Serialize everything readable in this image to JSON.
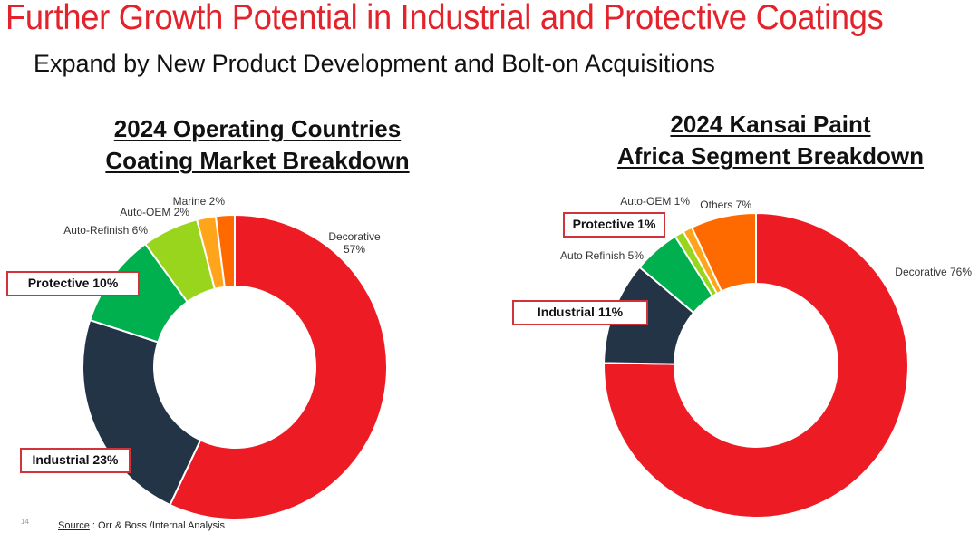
{
  "slide": {
    "title": "Further Growth Potential in Industrial and Protective Coatings",
    "subtitle": "Expand by New Product Development and Bolt-on Acquisitions",
    "page_number": "14",
    "source_label": "Source",
    "source_text": " : Orr & Boss /Internal Analysis"
  },
  "colors": {
    "title_red": "#e3222b",
    "callout_border": "#d0343a"
  },
  "chart_data": [
    {
      "type": "pie",
      "style": "donut",
      "title_line1": "2024 Operating Countries",
      "title_line2": "Coating Market Breakdown",
      "start": "12 o'clock",
      "direction": "clockwise",
      "unit": "%",
      "slices": [
        {
          "name": "Decorative",
          "value": 57,
          "label": "Decorative",
          "label2": "57%",
          "color": "#ed1c24",
          "callout": false
        },
        {
          "name": "Industrial",
          "value": 23,
          "label": "Industrial 23%",
          "color": "#243447",
          "callout": true
        },
        {
          "name": "Protective",
          "value": 10,
          "label": "Protective 10%",
          "color": "#00b04f",
          "callout": true
        },
        {
          "name": "Auto-Refinish",
          "value": 6,
          "label": "Auto-Refinish 6%",
          "color": "#99d51c",
          "callout": false
        },
        {
          "name": "Auto-OEM",
          "value": 2,
          "label": "Auto-OEM 2%",
          "color": "#ffa41b",
          "callout": false
        },
        {
          "name": "Marine",
          "value": 2,
          "label": "Marine 2%",
          "color": "#ff6a00",
          "callout": false
        }
      ]
    },
    {
      "type": "pie",
      "style": "donut",
      "title_line1": "2024 Kansai Paint",
      "title_line2": "Africa Segment Breakdown",
      "start": "12 o'clock",
      "direction": "clockwise",
      "unit": "%",
      "slices": [
        {
          "name": "Decorative",
          "value": 76,
          "label": "Decorative 76%",
          "color": "#ed1c24",
          "callout": false
        },
        {
          "name": "Industrial",
          "value": 11,
          "label": "Industrial 11%",
          "color": "#243447",
          "callout": true
        },
        {
          "name": "Auto Refinish",
          "value": 5,
          "label": "Auto Refinish 5%",
          "color": "#00b04f",
          "callout": false
        },
        {
          "name": "Protective",
          "value": 1,
          "label": "Protective 1%",
          "color": "#99d51c",
          "callout": true
        },
        {
          "name": "Auto-OEM",
          "value": 1,
          "label": "Auto-OEM 1%",
          "color": "#ffa41b",
          "callout": false
        },
        {
          "name": "Others",
          "value": 7,
          "label": "Others 7%",
          "color": "#ff6a00",
          "callout": false
        }
      ]
    }
  ]
}
